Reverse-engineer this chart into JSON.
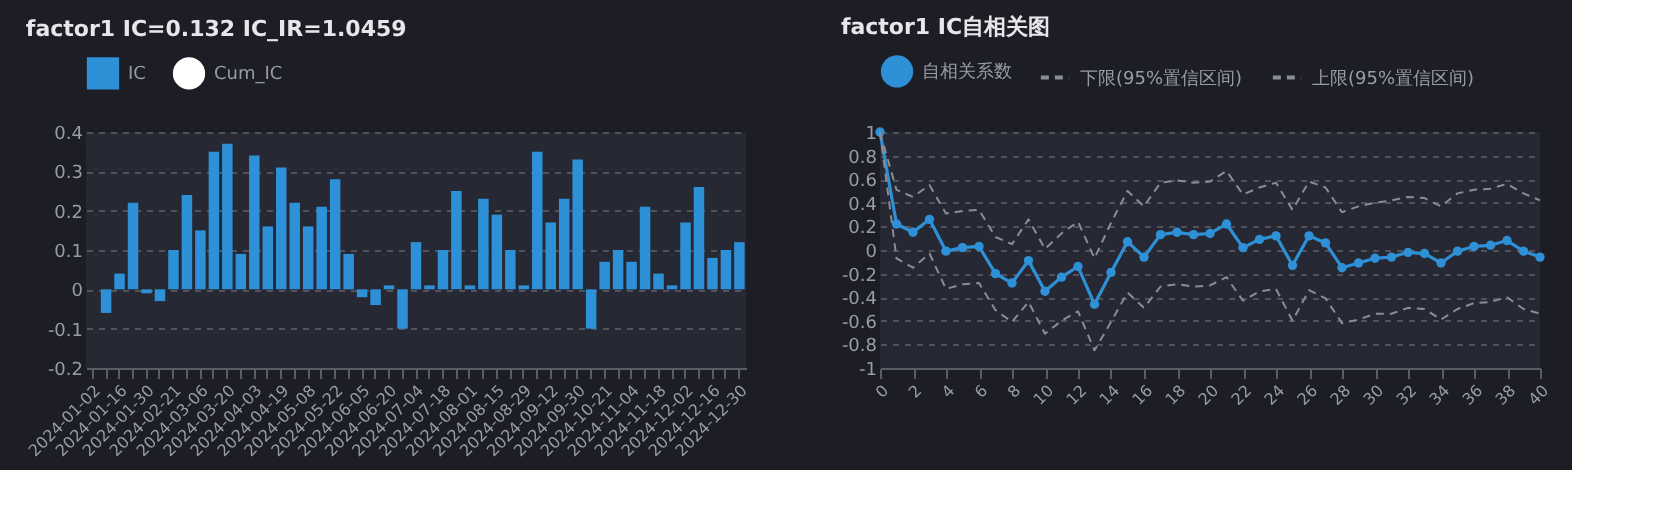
{
  "chart_data": [
    {
      "type": "bar",
      "title": "factor1 IC=0.132 IC_IR=1.0459",
      "categories": [
        "2024-01-02",
        null,
        "2024-01-16",
        null,
        "2024-01-30",
        null,
        "2024-02-21",
        null,
        "2024-03-06",
        null,
        "2024-03-20",
        null,
        "2024-04-03",
        null,
        "2024-04-19",
        null,
        "2024-05-08",
        null,
        "2024-05-22",
        null,
        "2024-06-05",
        null,
        "2024-06-20",
        null,
        "2024-07-04",
        null,
        "2024-07-18",
        null,
        "2024-08-01",
        null,
        "2024-08-15",
        null,
        "2024-08-29",
        null,
        "2024-09-12",
        null,
        "2024-09-30",
        null,
        "2024-10-21",
        null,
        "2024-11-04",
        null,
        "2024-11-18",
        null,
        "2024-12-02",
        null,
        "2024-12-16",
        null,
        "2024-12-30"
      ],
      "series": [
        {
          "name": "IC",
          "color": "#2e90d6",
          "values": [
            0,
            -0.06,
            0.04,
            0.22,
            -0.01,
            -0.03,
            0.1,
            0.24,
            0.15,
            0.35,
            0.37,
            0.09,
            0.34,
            0.16,
            0.31,
            0.22,
            0.16,
            0.21,
            0.28,
            0.09,
            -0.02,
            -0.04,
            0.01,
            -0.1,
            0.12,
            0.01,
            0.1,
            0.25,
            0.01,
            0.23,
            0.19,
            0.1,
            0.01,
            0.35,
            0.17,
            0.23,
            0.33,
            -0.1,
            0.07,
            0.1,
            0.07,
            0.21,
            0.04,
            0.01,
            0.17,
            0.26,
            0.08,
            0.1,
            0.12
          ]
        },
        {
          "name": "Cum_IC",
          "type": "line",
          "marker": "circle",
          "color": "#ffffff",
          "values": [
            null,
            null,
            null,
            null,
            null,
            null,
            null,
            null,
            null,
            null,
            null,
            null,
            null,
            null,
            null,
            null,
            null,
            null,
            null,
            null,
            null,
            null,
            null,
            null,
            null,
            null,
            null,
            null,
            null,
            null,
            null,
            null,
            null,
            null,
            null,
            null,
            null,
            null,
            null,
            null,
            null,
            null,
            null,
            null,
            null,
            null,
            null,
            null,
            null
          ]
        }
      ],
      "ylim": [
        -0.2,
        0.4
      ],
      "yticks": [
        -0.2,
        -0.1,
        0,
        0.1,
        0.2,
        0.3,
        0.4
      ],
      "grid": "y",
      "legend": "top"
    },
    {
      "type": "line",
      "title": "factor1 IC自相关图",
      "x": [
        0,
        1,
        2,
        3,
        4,
        5,
        6,
        7,
        8,
        9,
        10,
        11,
        12,
        13,
        14,
        15,
        16,
        17,
        18,
        19,
        20,
        21,
        22,
        23,
        24,
        25,
        26,
        27,
        28,
        29,
        30,
        31,
        32,
        33,
        34,
        35,
        36,
        37,
        38,
        39,
        40
      ],
      "series": [
        {
          "name": "自相关系数",
          "color": "#2e90d6",
          "marker": "circle",
          "line_style": "solid",
          "values": [
            1,
            0.22,
            0.15,
            0.26,
            -0.01,
            0.02,
            0.03,
            -0.2,
            -0.28,
            -0.09,
            -0.35,
            -0.23,
            -0.14,
            -0.46,
            -0.19,
            0.07,
            -0.06,
            0.13,
            0.15,
            0.13,
            0.14,
            0.22,
            0.02,
            0.09,
            0.12,
            -0.13,
            0.12,
            0.06,
            -0.15,
            -0.11,
            -0.07,
            -0.06,
            -0.02,
            -0.03,
            -0.11,
            -0.01,
            0.03,
            0.04,
            0.08,
            -0.01,
            -0.06
          ]
        },
        {
          "name": "下限(95%置信区间)",
          "color": "#8a8d94",
          "marker": "none",
          "line_style": "dashed",
          "values": [
            1,
            -0.07,
            -0.15,
            -0.03,
            -0.33,
            -0.29,
            -0.28,
            -0.51,
            -0.61,
            -0.44,
            -0.71,
            -0.6,
            -0.52,
            -0.85,
            -0.61,
            -0.36,
            -0.49,
            -0.31,
            -0.29,
            -0.31,
            -0.3,
            -0.23,
            -0.43,
            -0.35,
            -0.33,
            -0.6,
            -0.34,
            -0.41,
            -0.62,
            -0.59,
            -0.54,
            -0.54,
            -0.49,
            -0.5,
            -0.59,
            -0.5,
            -0.45,
            -0.44,
            -0.4,
            -0.5,
            -0.54
          ]
        },
        {
          "name": "上限(95%置信区间)",
          "color": "#8a8d94",
          "marker": "none",
          "line_style": "dashed",
          "values": [
            1,
            0.51,
            0.45,
            0.55,
            0.31,
            0.33,
            0.34,
            0.11,
            0.05,
            0.26,
            0.01,
            0.14,
            0.24,
            -0.07,
            0.23,
            0.5,
            0.37,
            0.57,
            0.59,
            0.57,
            0.58,
            0.67,
            0.47,
            0.53,
            0.57,
            0.34,
            0.58,
            0.53,
            0.32,
            0.37,
            0.4,
            0.42,
            0.45,
            0.44,
            0.37,
            0.48,
            0.51,
            0.52,
            0.56,
            0.48,
            0.42
          ]
        }
      ],
      "xlim": [
        0,
        40
      ],
      "xticks": [
        0,
        2,
        4,
        6,
        8,
        10,
        12,
        14,
        16,
        18,
        20,
        22,
        24,
        26,
        28,
        30,
        32,
        34,
        36,
        38,
        40
      ],
      "ylim": [
        -1,
        1
      ],
      "yticks": [
        -1,
        -0.8,
        -0.6,
        -0.4,
        -0.2,
        0,
        0.2,
        0.4,
        0.6,
        0.8,
        1
      ],
      "grid": "y",
      "legend": "top"
    }
  ]
}
